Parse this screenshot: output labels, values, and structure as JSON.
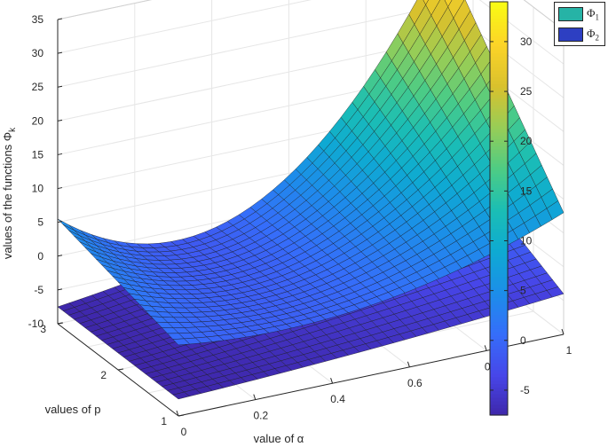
{
  "chart_data": {
    "type": "surface",
    "xlabel": "value of α",
    "ylabel": "values of p",
    "zlabel_base": "values of the functions Φ",
    "zlabel_sub": "k",
    "x_ticks": [
      "0",
      "0.2",
      "0.4",
      "0.6",
      "0.8",
      "1"
    ],
    "y_ticks": [
      "1",
      "2",
      "3"
    ],
    "z_ticks": [
      "-10",
      "-5",
      "0",
      "5",
      "10",
      "15",
      "20",
      "25",
      "30",
      "35"
    ],
    "xlim": [
      0,
      1
    ],
    "ylim": [
      1,
      3
    ],
    "zlim": [
      -10,
      35
    ],
    "grid": true,
    "legend_position": "top-right",
    "series": [
      {
        "name_base": "Φ",
        "name_sub": "1",
        "legend_color": "#26b3a6",
        "corner_values": {
          "a0_p3": 5.5,
          "a0_p1": 0.5,
          "a1_p3": 33,
          "a1_p1": 8
        },
        "min_value": 0
      },
      {
        "name_base": "Φ",
        "name_sub": "2",
        "legend_color": "#2d3fc2",
        "corner_values": {
          "a0_p3": -7.5,
          "a0_p1": -7.5,
          "a1_p3": 5,
          "a1_p1": -4
        }
      }
    ],
    "colorbar": {
      "ticks": [
        "-5",
        "0",
        "5",
        "10",
        "15",
        "20",
        "25",
        "30"
      ],
      "range": [
        -7.5,
        34
      ],
      "colormap": "parula"
    }
  }
}
